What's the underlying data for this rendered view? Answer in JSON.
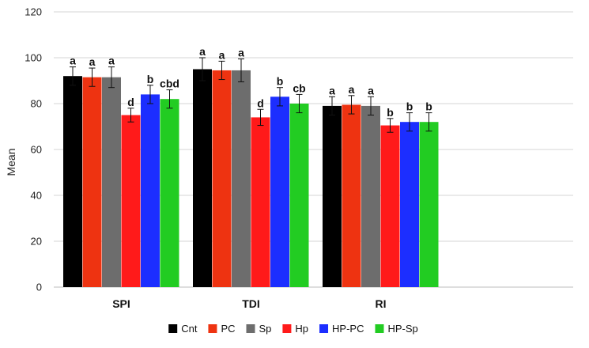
{
  "chart_data": {
    "type": "bar",
    "title": "",
    "xlabel": "",
    "ylabel": "Mean",
    "ylim": [
      0,
      120
    ],
    "yticks": [
      0,
      20,
      40,
      60,
      80,
      100,
      120
    ],
    "grid": true,
    "legend_position": "bottom",
    "categories": [
      "SPI",
      "TDI",
      "RI"
    ],
    "series": [
      {
        "name": "Cnt",
        "color": "#000000",
        "values": [
          92,
          95,
          79
        ],
        "errors": [
          4,
          5,
          4
        ],
        "labels": [
          "a",
          "a",
          "a"
        ]
      },
      {
        "name": "PC",
        "color": "#ee3311",
        "values": [
          91.5,
          94.5,
          79.5
        ],
        "errors": [
          4,
          4,
          4
        ],
        "labels": [
          "a",
          "a",
          "a"
        ]
      },
      {
        "name": "Sp",
        "color": "#6d6d6d",
        "values": [
          91.5,
          94.5,
          79
        ],
        "errors": [
          4.5,
          5,
          4
        ],
        "labels": [
          "a",
          "a",
          "a"
        ]
      },
      {
        "name": "Hp",
        "color": "#ff1a1a",
        "values": [
          75,
          74,
          70.5
        ],
        "errors": [
          3,
          3.5,
          3
        ],
        "labels": [
          "d",
          "d",
          "b"
        ]
      },
      {
        "name": "HP-PC",
        "color": "#1c2eff",
        "values": [
          84,
          83,
          72
        ],
        "errors": [
          4,
          4,
          4
        ],
        "labels": [
          "b",
          "b",
          "b"
        ]
      },
      {
        "name": "HP-Sp",
        "color": "#22cc22",
        "values": [
          82,
          80,
          72
        ],
        "errors": [
          4,
          4,
          4
        ],
        "labels": [
          "cbd",
          "cb",
          "b"
        ]
      }
    ]
  }
}
